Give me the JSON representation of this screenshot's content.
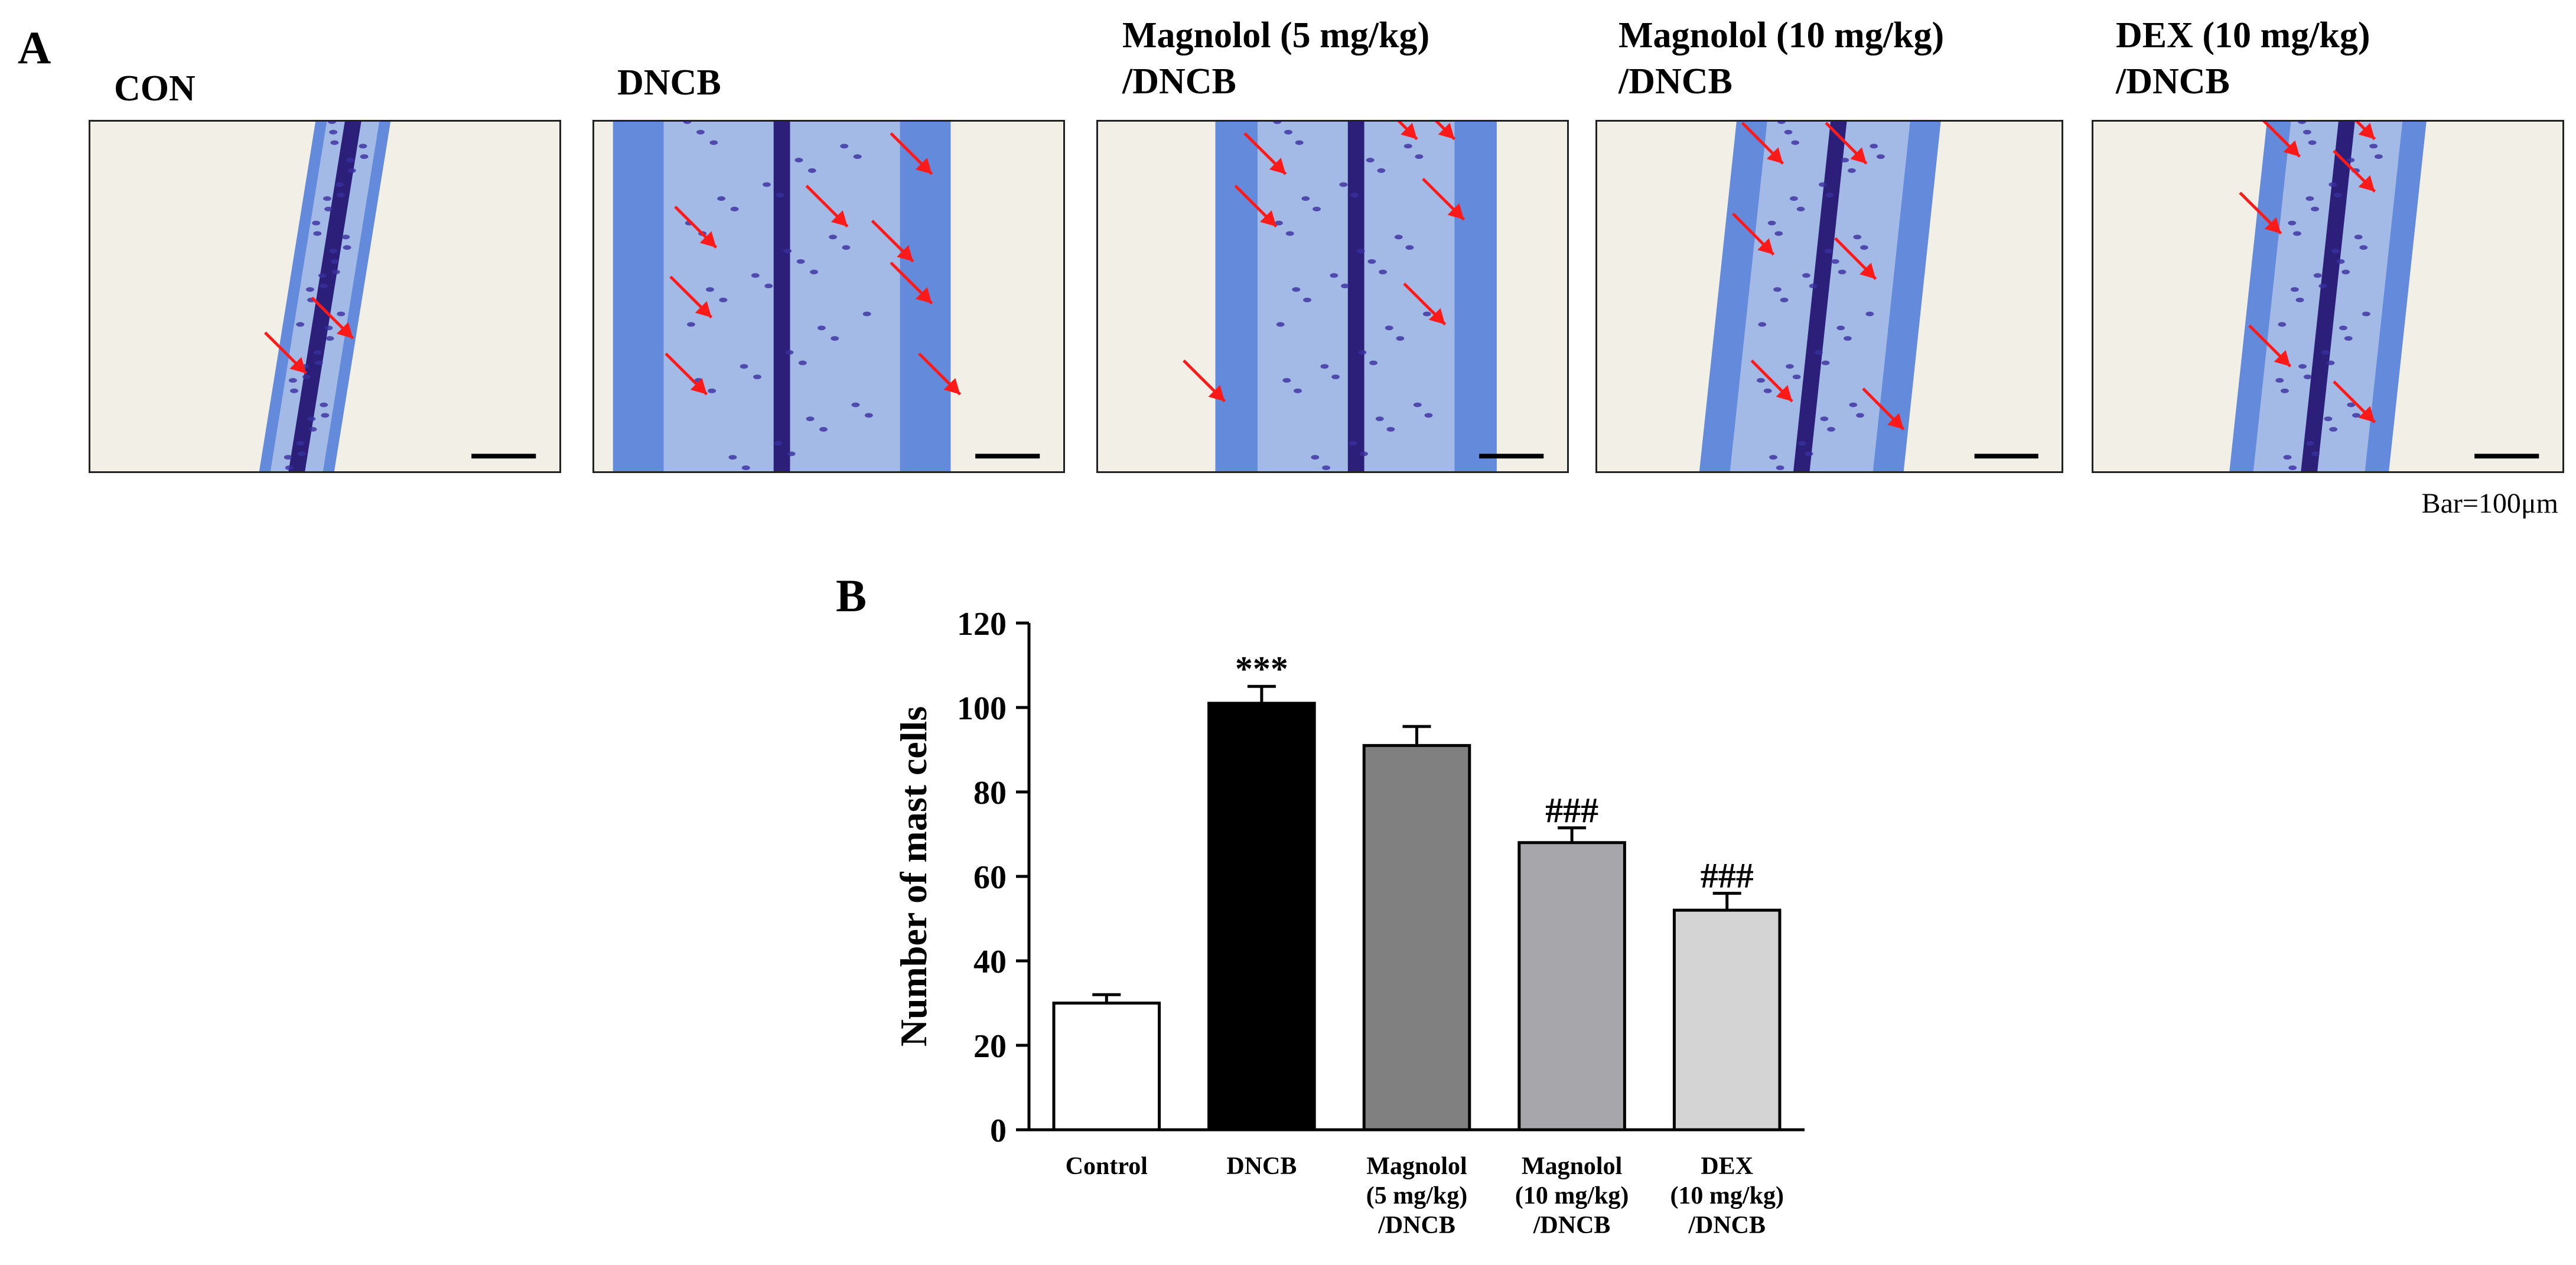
{
  "panel_a": {
    "letter": "A",
    "images": [
      {
        "label": "CON"
      },
      {
        "label": "DNCB"
      },
      {
        "label": "Magnolol (5 mg/kg)\n/DNCB"
      },
      {
        "label": "Magnolol (10 mg/kg)\n/DNCB"
      },
      {
        "label": "DEX (10 mg/kg)\n/DNCB"
      }
    ],
    "scale_note": "Bar=100μm"
  },
  "colors": {
    "tissue": "#4a78d8",
    "cartilage": "#2c1f7a",
    "background": "#f1efe6",
    "arrow": "#ff1a1a"
  },
  "chart_data": {
    "letter": "B",
    "type": "bar",
    "categories": [
      "Control",
      "DNCB",
      "Magnolol\n(5 mg/kg)\n/DNCB",
      "Magnolol\n(10 mg/kg)\n/DNCB",
      "DEX\n(10 mg/kg)\n/DNCB"
    ],
    "values": [
      30,
      101,
      91,
      68,
      52
    ],
    "errors": [
      2,
      4,
      4.5,
      3.5,
      4
    ],
    "bar_colors": [
      "#ffffff",
      "#000000",
      "#808080",
      "#a6a6ab",
      "#d4d4d4"
    ],
    "annotations": [
      "",
      "***",
      "",
      "###",
      "###"
    ],
    "ylabel": "Number of mast cells",
    "xlabel": "",
    "ylim": [
      0,
      120
    ],
    "yticks": [
      0,
      20,
      40,
      60,
      80,
      100,
      120
    ],
    "grid": false
  }
}
